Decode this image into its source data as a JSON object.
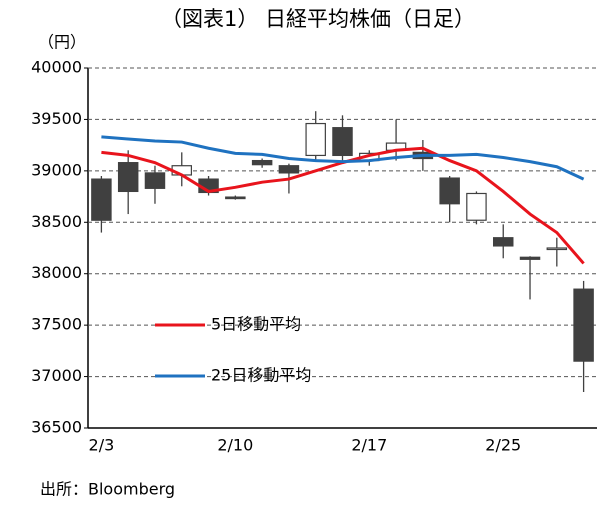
{
  "chart_data": {
    "type": "candlestick",
    "title": "（図表1） 日経平均株価（日足）",
    "y_unit": "（円）",
    "source": "出所：Bloomberg",
    "categories": [
      "2/3",
      null,
      null,
      null,
      null,
      "2/10",
      null,
      null,
      null,
      null,
      "2/17",
      null,
      null,
      null,
      null,
      "2/25",
      null,
      null,
      null
    ],
    "open": [
      38920,
      39080,
      38980,
      38960,
      38920,
      38745,
      39100,
      39050,
      39150,
      39420,
      39100,
      39200,
      39180,
      38930,
      38520,
      38350,
      38160,
      38240,
      37850
    ],
    "high": [
      38950,
      39200,
      39050,
      39180,
      38950,
      38760,
      39120,
      39070,
      39580,
      39540,
      39200,
      39500,
      39300,
      38950,
      38800,
      38480,
      38170,
      38350,
      37930
    ],
    "low": [
      38400,
      38580,
      38680,
      38850,
      38760,
      38720,
      39030,
      38780,
      39100,
      39100,
      39050,
      39100,
      39000,
      38500,
      38480,
      38150,
      37750,
      38070,
      36850
    ],
    "close": [
      38520,
      38800,
      38830,
      39050,
      38790,
      38735,
      39060,
      38980,
      39460,
      39150,
      39170,
      39270,
      39120,
      38680,
      38780,
      38270,
      38140,
      38250,
      37150
    ],
    "up_color": "#ffffff",
    "down_color": "#404040",
    "series": [
      {
        "name": "5日移動平均",
        "color": "#e8141c",
        "values": [
          39180,
          39150,
          39080,
          38960,
          38800,
          38840,
          38890,
          38920,
          39000,
          39080,
          39150,
          39200,
          39220,
          39100,
          39000,
          38800,
          38580,
          38400,
          38100
        ]
      },
      {
        "name": "25日移動平均",
        "color": "#1f72c0",
        "values": [
          39330,
          39310,
          39290,
          39280,
          39220,
          39170,
          39160,
          39120,
          39100,
          39090,
          39100,
          39130,
          39150,
          39150,
          39160,
          39130,
          39090,
          39040,
          38920
        ]
      }
    ],
    "ylim": [
      36500,
      40000
    ],
    "yticks": [
      36500,
      37000,
      37500,
      38000,
      38500,
      39000,
      39500,
      40000
    ],
    "grid": true
  }
}
